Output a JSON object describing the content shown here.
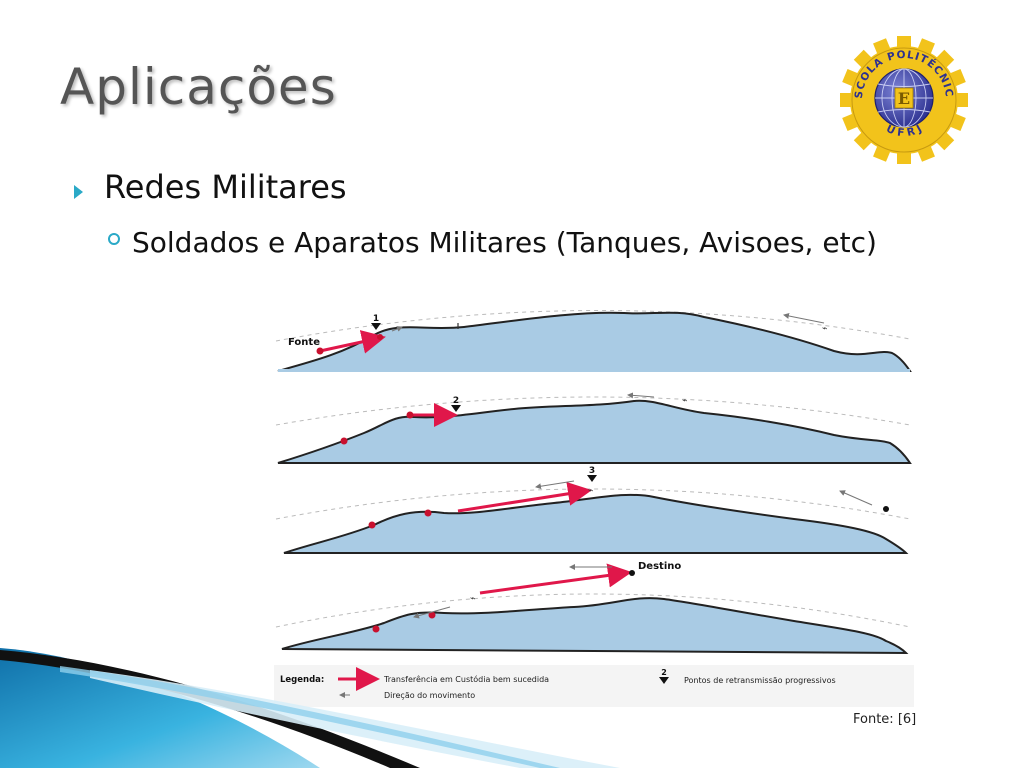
{
  "slide": {
    "title": "Aplicações",
    "bullets": [
      {
        "text": "Redes Militares",
        "sub": [
          {
            "text": "Soldados e Aparatos Militares (Tanques, Avisoes, etc)"
          }
        ]
      }
    ],
    "source": "Fonte: [6]"
  },
  "logo": {
    "ring_text": "ESCOLA POLITÉCNICA",
    "bottom_text": "U F R J",
    "letter": "E",
    "colors": {
      "gear": "#f2c31b",
      "globe": "#3a3f9a"
    }
  },
  "figure": {
    "panels": [
      {
        "marker": "1",
        "label": "Fonte"
      },
      {
        "marker": "2"
      },
      {
        "marker": "3"
      },
      {
        "label": "Destino"
      }
    ],
    "legend": {
      "title": "Legenda:",
      "items": [
        "Transferência em Custódia bem sucedida",
        "Direção do movimento",
        "Pontos de retransmissão progressivos"
      ]
    },
    "colors": {
      "terrain": "#a9cbe4",
      "transfer": "#e0174a",
      "node": "#c8102e"
    }
  },
  "theme": {
    "accent": "#2aa9c7",
    "swoosh_dark": "#111111",
    "swoosh_blue": "#1d8fc4"
  }
}
